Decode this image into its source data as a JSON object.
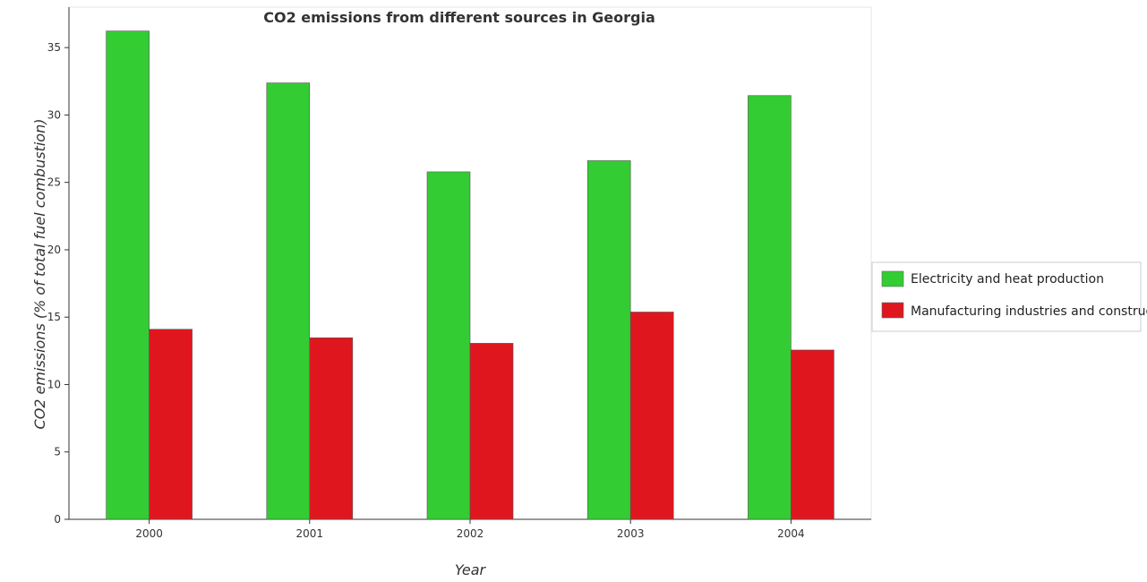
{
  "chart_data": {
    "type": "bar",
    "title": "CO2 emissions from different sources in Georgia",
    "xlabel": "Year",
    "ylabel": "CO2 emissions (% of total fuel combustion)",
    "categories": [
      "2000",
      "2001",
      "2002",
      "2003",
      "2004"
    ],
    "ylim": [
      0,
      38
    ],
    "yticks": [
      0,
      5,
      10,
      15,
      20,
      25,
      30,
      35
    ],
    "grid": false,
    "legend_position": "right",
    "series": [
      {
        "name": "Electricity and heat production",
        "color": "#33cc33",
        "values": [
          36.23,
          32.38,
          25.78,
          26.61,
          31.44
        ]
      },
      {
        "name": "Manufacturing industries and construction",
        "color": "#e0161f",
        "values": [
          14.1,
          13.47,
          13.06,
          15.38,
          12.56
        ]
      }
    ]
  }
}
